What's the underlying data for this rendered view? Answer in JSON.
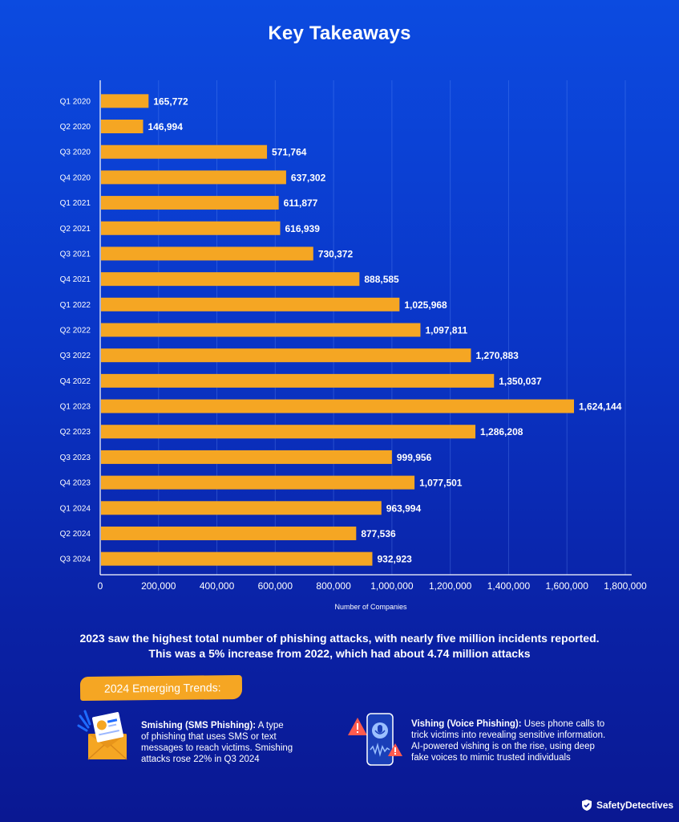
{
  "page": {
    "title": "Key Takeaways"
  },
  "chart_data": {
    "type": "bar",
    "orientation": "horizontal",
    "categories": [
      "Q1 2020",
      "Q2 2020",
      "Q3 2020",
      "Q4 2020",
      "Q1 2021",
      "Q2 2021",
      "Q3 2021",
      "Q4 2021",
      "Q1 2022",
      "Q2 2022",
      "Q3 2022",
      "Q4 2022",
      "Q1 2023",
      "Q2 2023",
      "Q3 2023",
      "Q4 2023",
      "Q1 2024",
      "Q2 2024",
      "Q3 2024"
    ],
    "values": [
      165772,
      146994,
      571764,
      637302,
      611877,
      616939,
      730372,
      888585,
      1025968,
      1097811,
      1270883,
      1350037,
      1624144,
      1286208,
      999956,
      1077501,
      963994,
      877536,
      932923
    ],
    "value_labels": [
      "165,772",
      "146,994",
      "571,764",
      "637,302",
      "611,877",
      "616,939",
      "730,372",
      "888,585",
      "1,025,968",
      "1,097,811",
      "1,270,883",
      "1,350,037",
      "1,624,144",
      "1,286,208",
      "999,956",
      "1,077,501",
      "963,994",
      "877,536",
      "932,923"
    ],
    "xlim": [
      0,
      1800000
    ],
    "xticks": [
      0,
      200000,
      400000,
      600000,
      800000,
      1000000,
      1200000,
      1400000,
      1600000,
      1800000
    ],
    "xtick_labels": [
      "0",
      "200,000",
      "400,000",
      "600,000",
      "800,000",
      "1,000,000",
      "1,200,000",
      "1,400,000",
      "1,600,000",
      "1,800,000"
    ],
    "xlabel": "Number of Companies",
    "ylabel": "",
    "grid": true,
    "bar_color": "#f5a623"
  },
  "summary": "2023 saw the highest total number of phishing attacks, with nearly five million incidents reported. This was a 5% increase from 2022, which had about 4.74 million attacks",
  "trends": {
    "heading": "2024 Emerging Trends:",
    "smishing": {
      "title": "Smishing (SMS Phishing):",
      "text": "A type of phishing that uses SMS or text messages to reach victims. Smishing attacks rose 22% in Q3 2024",
      "icon": "sms-envelope-icon"
    },
    "vishing": {
      "title": "Vishing (Voice Phishing):",
      "text": "Uses phone calls to trick victims into revealing sensitive information. AI-powered vishing is on the rise, using deep fake voices to mimic trusted individuals",
      "icon": "phone-warning-icon"
    }
  },
  "brand": {
    "name": "SafetyDetectives",
    "icon": "shield-check-icon"
  }
}
